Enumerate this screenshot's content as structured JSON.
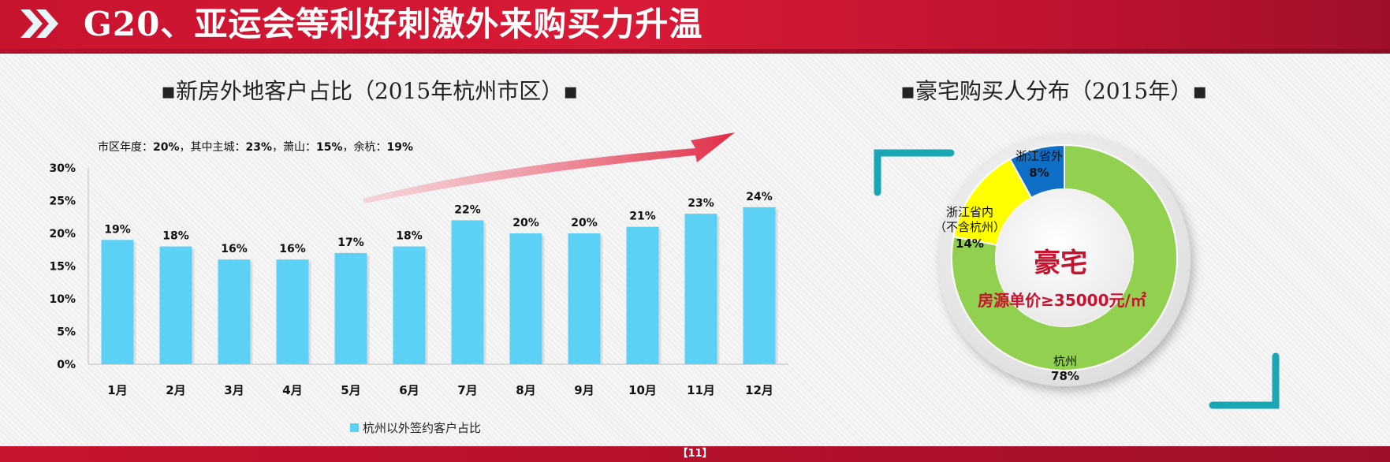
{
  "header": {
    "title": "G20、亚运会等利好刺激外来购买力升温"
  },
  "footer": {
    "page_number": "【11】"
  },
  "bar_panel": {
    "title": "▪新房外地客户占比（2015年杭州市区）▪",
    "note": {
      "label1": "市区年度：",
      "v1": "20%",
      "label2": "，其中主城：",
      "v2": "23%",
      "label3": "，萧山：",
      "v3": "15%",
      "label4": "，余杭：",
      "v4": "19%"
    }
  },
  "donut_panel": {
    "title": "▪豪宅购买人分布（2015年）▪",
    "center_title": "豪宅",
    "center_sub": "房源单价≥35000元/㎡"
  },
  "colors": {
    "bar": "#5dd0f6",
    "hangzhou": "#92d050",
    "in_province": "#ffff00",
    "out_province": "#0f6fc6",
    "header": "#c8132f",
    "accent": "#1aa6b5"
  },
  "chart_data": [
    {
      "type": "bar",
      "title": "新房外地客户占比（2015年杭州市区）",
      "categories": [
        "1月",
        "2月",
        "3月",
        "4月",
        "5月",
        "6月",
        "7月",
        "8月",
        "9月",
        "10月",
        "11月",
        "12月"
      ],
      "series": [
        {
          "name": "杭州以外签约客户占比",
          "values": [
            19,
            18,
            16,
            16,
            17,
            18,
            22,
            20,
            20,
            21,
            23,
            24
          ]
        }
      ],
      "value_labels": [
        "19%",
        "18%",
        "16%",
        "16%",
        "17%",
        "18%",
        "22%",
        "20%",
        "20%",
        "21%",
        "23%",
        "24%"
      ],
      "ytick_labels": [
        "0%",
        "5%",
        "10%",
        "15%",
        "20%",
        "25%",
        "30%"
      ],
      "ylim": [
        0,
        30
      ],
      "legend": "bottom"
    },
    {
      "type": "pie",
      "title": "豪宅购买人分布（2015年）",
      "slices": [
        {
          "label": "杭州",
          "value": 78,
          "pct_label": "78%"
        },
        {
          "label": "浙江省内",
          "label2": "（不含杭州）",
          "value": 14,
          "pct_label": "14%"
        },
        {
          "label": "浙江省外",
          "value": 8,
          "pct_label": "8%"
        }
      ]
    }
  ]
}
